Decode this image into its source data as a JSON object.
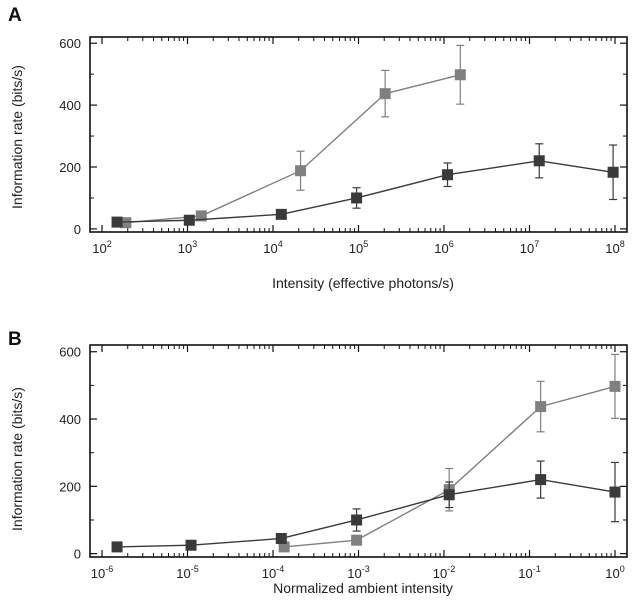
{
  "chart_data": [
    {
      "panel": "A",
      "type": "line",
      "title": "",
      "xlabel": "Intensity (effective photons/s)",
      "ylabel": "Information rate (bits/s)",
      "xscale": "log",
      "xlim": [
        100,
        100000000
      ],
      "ylim": [
        -10,
        620
      ],
      "x_ticks": [
        {
          "base": "10",
          "exp": "2",
          "value": 100
        },
        {
          "base": "10",
          "exp": "3",
          "value": 1000
        },
        {
          "base": "10",
          "exp": "4",
          "value": 10000
        },
        {
          "base": "10",
          "exp": "5",
          "value": 100000
        },
        {
          "base": "10",
          "exp": "6",
          "value": 1000000
        },
        {
          "base": "10",
          "exp": "7",
          "value": 10000000
        },
        {
          "base": "10",
          "exp": "8",
          "value": 100000000
        }
      ],
      "y_ticks": [
        {
          "label": "0",
          "value": 0
        },
        {
          "label": "200",
          "value": 200
        },
        {
          "label": "400",
          "value": 400
        },
        {
          "label": "600",
          "value": 600
        }
      ],
      "grid": false,
      "series": [
        {
          "color": "#3a3a3a",
          "points": [
            {
              "x": 150,
              "y": 22,
              "err": 4
            },
            {
              "x": 1050,
              "y": 28,
              "err": 6
            },
            {
              "x": 12500,
              "y": 47,
              "err": 12
            },
            {
              "x": 95000,
              "y": 100,
              "err": 33
            },
            {
              "x": 1100000,
              "y": 175,
              "err": 38
            },
            {
              "x": 13000000,
              "y": 220,
              "err": 55
            },
            {
              "x": 95000000,
              "y": 183,
              "err": 88
            }
          ]
        },
        {
          "color": "#808080",
          "points": [
            {
              "x": 190,
              "y": 20,
              "err": 4
            },
            {
              "x": 1450,
              "y": 42,
              "err": 6
            },
            {
              "x": 21000,
              "y": 188,
              "err": 63
            },
            {
              "x": 205000,
              "y": 437,
              "err": 75
            },
            {
              "x": 1550000,
              "y": 498,
              "err": 95
            }
          ]
        }
      ]
    },
    {
      "panel": "B",
      "type": "line",
      "title": "",
      "xlabel": "Normalized ambient intensity",
      "ylabel": "Information rate (bits/s)",
      "xscale": "log",
      "xlim": [
        1e-06,
        1
      ],
      "ylim": [
        -10,
        620
      ],
      "x_ticks": [
        {
          "base": "10",
          "exp": "-6",
          "value": 1e-06
        },
        {
          "base": "10",
          "exp": "-5",
          "value": 1e-05
        },
        {
          "base": "10",
          "exp": "-4",
          "value": 0.0001
        },
        {
          "base": "10",
          "exp": "-3",
          "value": 0.001
        },
        {
          "base": "10",
          "exp": "-2",
          "value": 0.01
        },
        {
          "base": "10",
          "exp": "-1",
          "value": 0.1
        },
        {
          "base": "10",
          "exp": "0",
          "value": 1
        }
      ],
      "y_ticks": [
        {
          "label": "0",
          "value": 0
        },
        {
          "label": "200",
          "value": 200
        },
        {
          "label": "400",
          "value": 400
        },
        {
          "label": "600",
          "value": 600
        }
      ],
      "grid": false,
      "series": [
        {
          "color": "#3a3a3a",
          "points": [
            {
              "x": 1.5e-06,
              "y": 20,
              "err": 4
            },
            {
              "x": 1.1e-05,
              "y": 25,
              "err": 6
            },
            {
              "x": 0.000125,
              "y": 45,
              "err": 12
            },
            {
              "x": 0.00095,
              "y": 100,
              "err": 33
            },
            {
              "x": 0.0115,
              "y": 175,
              "err": 38
            },
            {
              "x": 0.135,
              "y": 220,
              "err": 55
            },
            {
              "x": 1.0,
              "y": 183,
              "err": 88
            }
          ]
        },
        {
          "color": "#808080",
          "points": [
            {
              "x": 0.000135,
              "y": 20,
              "err": 4
            },
            {
              "x": 0.00095,
              "y": 40,
              "err": 6
            },
            {
              "x": 0.0115,
              "y": 190,
              "err": 63
            },
            {
              "x": 0.135,
              "y": 437,
              "err": 75
            },
            {
              "x": 1.0,
              "y": 497,
              "err": 95
            }
          ]
        }
      ]
    }
  ]
}
